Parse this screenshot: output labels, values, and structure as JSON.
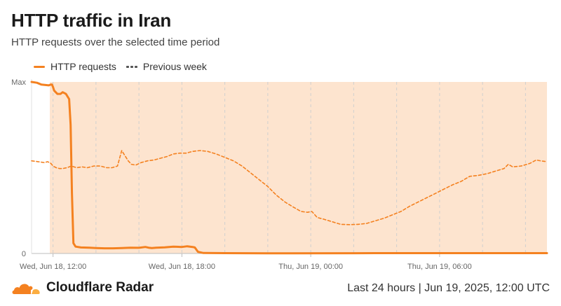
{
  "header": {
    "title": "HTTP traffic in Iran",
    "subtitle": "HTTP requests over the selected time period"
  },
  "legend": {
    "items": [
      {
        "label": "HTTP requests",
        "style": "solid",
        "color": "#f48120"
      },
      {
        "label": "Previous week",
        "style": "dashed",
        "color": "#555555"
      }
    ],
    "placement": "top-left"
  },
  "footer": {
    "brand": "Cloudflare Radar",
    "range_label": "Last 24 hours",
    "separator": "|",
    "date_label": "Jun 19, 2025, 12:00 UTC",
    "logo_icon": "cloudflare-cloud-icon",
    "logo_color": "#f48120"
  },
  "chart_data": {
    "type": "line",
    "x_unit": "hours since Wed, Jun 18, 11:00 UTC",
    "xlim": [
      0,
      24
    ],
    "ylim": [
      0,
      1
    ],
    "y_ticks": [
      {
        "value": 1,
        "label": "Max"
      },
      {
        "value": 0,
        "label": "0"
      }
    ],
    "x_ticks": [
      {
        "x": 1,
        "label": "Wed, Jun 18, 12:00"
      },
      {
        "x": 7,
        "label": "Wed, Jun 18, 18:00"
      },
      {
        "x": 13,
        "label": "Thu, Jun 19, 00:00"
      },
      {
        "x": 19,
        "label": "Thu, Jun 19, 06:00"
      }
    ],
    "grid": {
      "vertical_dashed_x": [
        1,
        3,
        5,
        7,
        9,
        11,
        13,
        15,
        17,
        19,
        21,
        23
      ]
    },
    "highlight_region": {
      "x_start": 0.85,
      "x_end": 24,
      "color": "#fde4cf"
    },
    "series": [
      {
        "name": "HTTP requests",
        "color": "#f48120",
        "style": "solid",
        "points": [
          [
            0,
            1.0
          ],
          [
            0.25,
            0.995
          ],
          [
            0.45,
            0.985
          ],
          [
            0.65,
            0.982
          ],
          [
            0.8,
            0.98
          ],
          [
            0.9,
            0.985
          ],
          [
            0.95,
            0.985
          ],
          [
            1.0,
            0.97
          ],
          [
            1.05,
            0.95
          ],
          [
            1.2,
            0.93
          ],
          [
            1.35,
            0.93
          ],
          [
            1.45,
            0.94
          ],
          [
            1.6,
            0.93
          ],
          [
            1.75,
            0.9
          ],
          [
            1.82,
            0.75
          ],
          [
            1.88,
            0.35
          ],
          [
            1.95,
            0.06
          ],
          [
            2.05,
            0.04
          ],
          [
            2.3,
            0.035
          ],
          [
            2.7,
            0.034
          ],
          [
            3.0,
            0.032
          ],
          [
            3.4,
            0.03
          ],
          [
            3.8,
            0.03
          ],
          [
            4.2,
            0.032
          ],
          [
            4.6,
            0.034
          ],
          [
            5.0,
            0.033
          ],
          [
            5.3,
            0.038
          ],
          [
            5.45,
            0.034
          ],
          [
            5.6,
            0.032
          ],
          [
            5.8,
            0.034
          ],
          [
            6.2,
            0.036
          ],
          [
            6.6,
            0.04
          ],
          [
            7.0,
            0.038
          ],
          [
            7.25,
            0.042
          ],
          [
            7.5,
            0.038
          ],
          [
            7.6,
            0.035
          ],
          [
            7.75,
            0.01
          ],
          [
            8.0,
            0.003
          ],
          [
            9.0,
            0.002
          ],
          [
            12.0,
            0.001
          ],
          [
            16.0,
            0.002
          ],
          [
            20.0,
            0.002
          ],
          [
            24.0,
            0.002
          ]
        ]
      },
      {
        "name": "Previous week",
        "color": "#f48120",
        "style": "dashed",
        "points": [
          [
            0,
            0.54
          ],
          [
            0.3,
            0.535
          ],
          [
            0.6,
            0.53
          ],
          [
            0.75,
            0.535
          ],
          [
            0.9,
            0.525
          ],
          [
            1.0,
            0.51
          ],
          [
            1.15,
            0.5
          ],
          [
            1.3,
            0.495
          ],
          [
            1.45,
            0.495
          ],
          [
            1.65,
            0.5
          ],
          [
            1.85,
            0.51
          ],
          [
            2.1,
            0.5
          ],
          [
            2.35,
            0.505
          ],
          [
            2.6,
            0.5
          ],
          [
            2.9,
            0.51
          ],
          [
            3.2,
            0.51
          ],
          [
            3.5,
            0.5
          ],
          [
            3.75,
            0.5
          ],
          [
            4.0,
            0.51
          ],
          [
            4.2,
            0.6
          ],
          [
            4.35,
            0.57
          ],
          [
            4.5,
            0.54
          ],
          [
            4.65,
            0.52
          ],
          [
            4.85,
            0.515
          ],
          [
            5.1,
            0.53
          ],
          [
            5.4,
            0.54
          ],
          [
            5.7,
            0.545
          ],
          [
            6.0,
            0.555
          ],
          [
            6.3,
            0.565
          ],
          [
            6.6,
            0.58
          ],
          [
            6.9,
            0.585
          ],
          [
            7.2,
            0.585
          ],
          [
            7.5,
            0.595
          ],
          [
            7.85,
            0.6
          ],
          [
            8.2,
            0.595
          ],
          [
            8.6,
            0.58
          ],
          [
            9.0,
            0.56
          ],
          [
            9.4,
            0.54
          ],
          [
            9.8,
            0.51
          ],
          [
            10.2,
            0.47
          ],
          [
            10.6,
            0.43
          ],
          [
            11.0,
            0.39
          ],
          [
            11.4,
            0.34
          ],
          [
            11.8,
            0.3
          ],
          [
            12.2,
            0.27
          ],
          [
            12.55,
            0.245
          ],
          [
            12.85,
            0.24
          ],
          [
            13.05,
            0.245
          ],
          [
            13.3,
            0.21
          ],
          [
            13.6,
            0.2
          ],
          [
            14.0,
            0.185
          ],
          [
            14.4,
            0.17
          ],
          [
            14.8,
            0.168
          ],
          [
            15.2,
            0.17
          ],
          [
            15.6,
            0.175
          ],
          [
            16.0,
            0.19
          ],
          [
            16.4,
            0.205
          ],
          [
            16.8,
            0.225
          ],
          [
            17.2,
            0.245
          ],
          [
            17.6,
            0.275
          ],
          [
            18.0,
            0.3
          ],
          [
            18.4,
            0.325
          ],
          [
            18.8,
            0.35
          ],
          [
            19.2,
            0.375
          ],
          [
            19.6,
            0.4
          ],
          [
            20.0,
            0.42
          ],
          [
            20.4,
            0.45
          ],
          [
            20.8,
            0.455
          ],
          [
            21.2,
            0.465
          ],
          [
            21.6,
            0.48
          ],
          [
            22.0,
            0.495
          ],
          [
            22.2,
            0.52
          ],
          [
            22.4,
            0.505
          ],
          [
            22.8,
            0.51
          ],
          [
            23.2,
            0.525
          ],
          [
            23.5,
            0.545
          ],
          [
            23.7,
            0.54
          ],
          [
            24.0,
            0.535
          ]
        ]
      }
    ]
  }
}
